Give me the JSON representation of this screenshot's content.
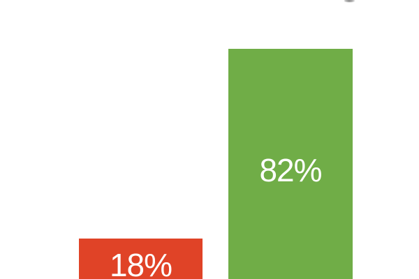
{
  "chart_data": {
    "type": "bar",
    "values": [
      18,
      82
    ],
    "data_labels": [
      "18%",
      "82%"
    ],
    "bar_colors": [
      "#E04327",
      "#70AD47"
    ],
    "label_color": "#FFFFFF",
    "background_color": "#FFFFFF",
    "title": "",
    "xlabel": "",
    "ylabel": "",
    "tick_labels": [],
    "legend": "none",
    "gridlines": false,
    "axes_visible": false,
    "data_label_position": "inside-center",
    "crop_note": "Chart is cropped: baseline/category axis and title lie outside the visible area; only a tiny gray descender of the cut-off title is visible at top right."
  }
}
